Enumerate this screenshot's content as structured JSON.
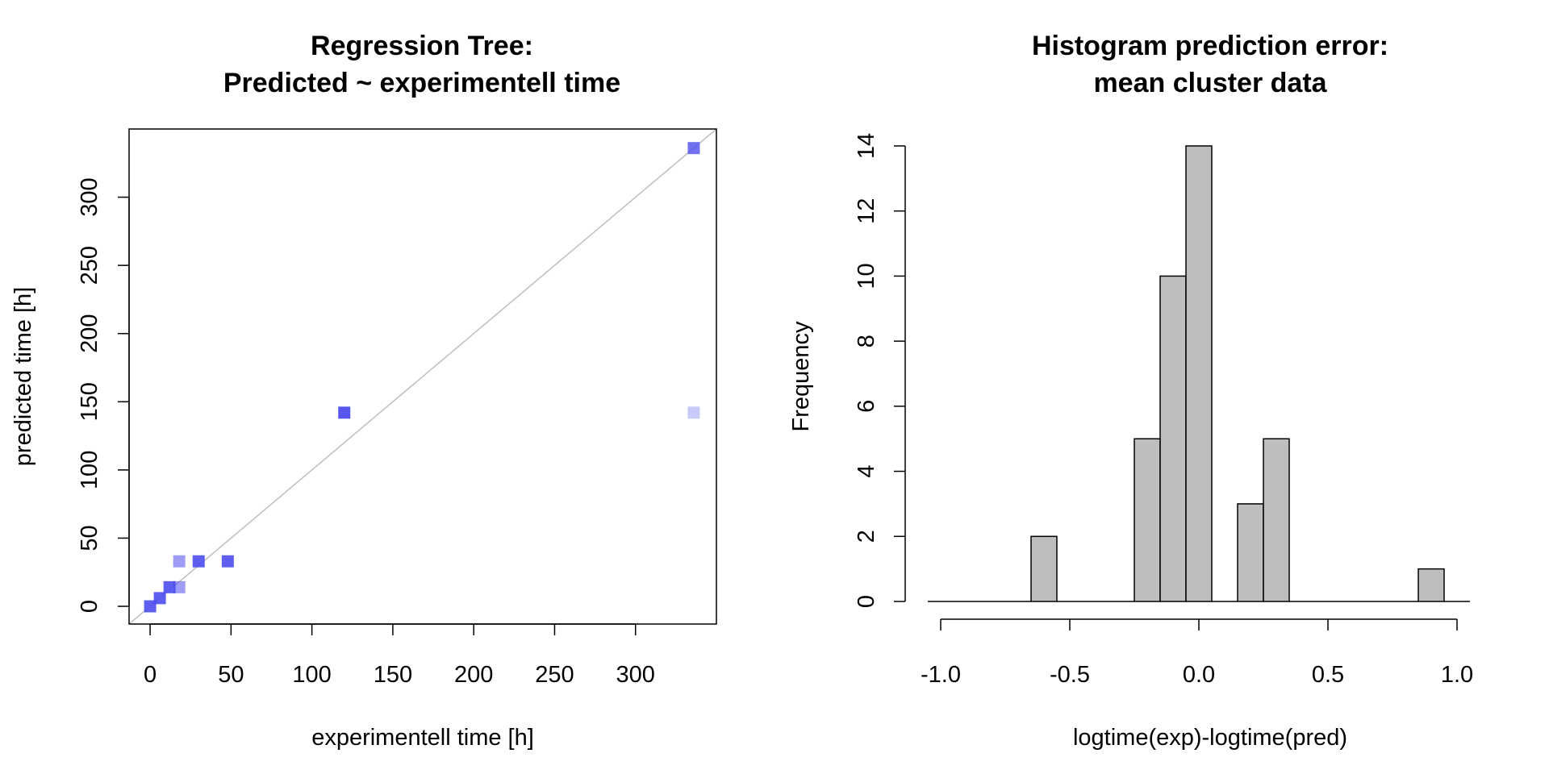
{
  "colors": {
    "point": "#4d4dee",
    "identity_line": "#bebebe",
    "bar_fill": "#bebebe",
    "bar_stroke": "#000000",
    "axis": "#000000"
  },
  "chart_data": [
    {
      "type": "scatter",
      "title_line1": "Regression Tree:",
      "title_line2": "Predicted ~ experimentell time",
      "xlabel": "experimentell time [h]",
      "ylabel": "predicted time [h]",
      "xlim": [
        -13,
        350
      ],
      "ylim": [
        -13,
        350
      ],
      "xticks": [
        0,
        50,
        100,
        150,
        200,
        250,
        300
      ],
      "yticks": [
        0,
        50,
        100,
        150,
        200,
        250,
        300
      ],
      "marker": "square",
      "reference_line": "y = x",
      "points": [
        {
          "x": 0,
          "y": 0,
          "opacity": 0.9
        },
        {
          "x": 6,
          "y": 6,
          "opacity": 0.9
        },
        {
          "x": 12,
          "y": 14,
          "opacity": 0.9
        },
        {
          "x": 18,
          "y": 14,
          "opacity": 0.55
        },
        {
          "x": 18,
          "y": 33,
          "opacity": 0.55
        },
        {
          "x": 30,
          "y": 33,
          "opacity": 0.9
        },
        {
          "x": 48,
          "y": 33,
          "opacity": 0.9
        },
        {
          "x": 120,
          "y": 142,
          "opacity": 0.95
        },
        {
          "x": 336,
          "y": 142,
          "opacity": 0.3
        },
        {
          "x": 336,
          "y": 336,
          "opacity": 0.8
        }
      ]
    },
    {
      "type": "bar",
      "subtype": "histogram",
      "title_line1": "Histogram prediction error:",
      "title_line2": "mean cluster data",
      "xlabel": "logtime(exp)-logtime(pred)",
      "ylabel": "Frequency",
      "xlim": [
        -1.05,
        1.05
      ],
      "ylim": [
        0,
        14
      ],
      "xticks": [
        "-1.0",
        "-0.5",
        "0.0",
        "0.5",
        "1.0"
      ],
      "xtick_values": [
        -1.0,
        -0.5,
        0.0,
        0.5,
        1.0
      ],
      "yticks": [
        0,
        2,
        4,
        6,
        8,
        10,
        12,
        14
      ],
      "bin_width": 0.1,
      "bins": [
        {
          "start": -1.05,
          "count": 0
        },
        {
          "start": -0.95,
          "count": 0
        },
        {
          "start": -0.85,
          "count": 0
        },
        {
          "start": -0.75,
          "count": 0
        },
        {
          "start": -0.65,
          "count": 2
        },
        {
          "start": -0.55,
          "count": 0
        },
        {
          "start": -0.45,
          "count": 0
        },
        {
          "start": -0.35,
          "count": 0
        },
        {
          "start": -0.25,
          "count": 5
        },
        {
          "start": -0.15,
          "count": 10
        },
        {
          "start": -0.05,
          "count": 14
        },
        {
          "start": 0.05,
          "count": 0
        },
        {
          "start": 0.15,
          "count": 3
        },
        {
          "start": 0.25,
          "count": 5
        },
        {
          "start": 0.35,
          "count": 0
        },
        {
          "start": 0.45,
          "count": 0
        },
        {
          "start": 0.55,
          "count": 0
        },
        {
          "start": 0.65,
          "count": 0
        },
        {
          "start": 0.75,
          "count": 0
        },
        {
          "start": 0.85,
          "count": 1
        },
        {
          "start": 0.95,
          "count": 0
        }
      ]
    }
  ]
}
